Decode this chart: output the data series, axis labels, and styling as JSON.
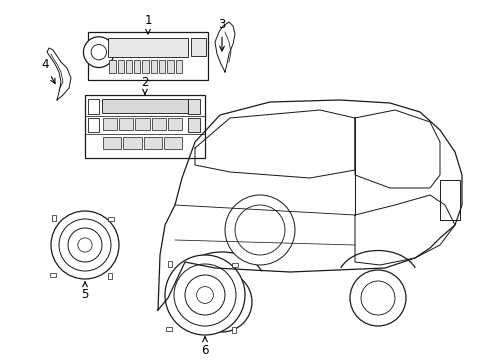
{
  "background_color": "#ffffff",
  "line_color": "#1a1a1a",
  "line_width": 0.9,
  "label_fontsize": 8.5,
  "figsize": [
    4.89,
    3.6
  ],
  "dpi": 100,
  "xlim": [
    0,
    489
  ],
  "ylim": [
    0,
    360
  ]
}
